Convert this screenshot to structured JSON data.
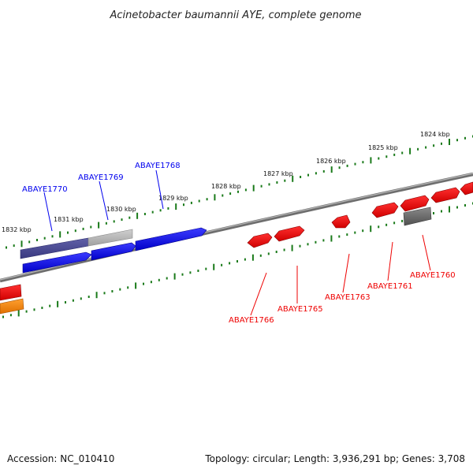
{
  "title": "Acinetobacter baumannii AYE, complete genome",
  "footer": {
    "accession": "Accession: NC_010410",
    "summary": "Topology: circular; Length: 3,936,291 bp; Genes: 3,708"
  },
  "ruler": {
    "labels": [
      "1832 kbp",
      "1831 kbp",
      "1830 kbp",
      "1829 kbp",
      "1828 kbp",
      "1827 kbp",
      "1826 kbp",
      "1825 kbp",
      "1824 kbp"
    ]
  },
  "genes": {
    "top": [
      "ABAYE1770",
      "ABAYE1769",
      "ABAYE1768"
    ],
    "bottom": [
      "ABAYE1766",
      "ABAYE1765",
      "ABAYE1763",
      "ABAYE1761",
      "ABAYE1760"
    ]
  },
  "colors": {
    "blue": "#0000ee",
    "red": "#ee0000",
    "tick_green": "#1a7a1a",
    "backbone": "#7a7a7a",
    "orange": "#f08a00"
  }
}
